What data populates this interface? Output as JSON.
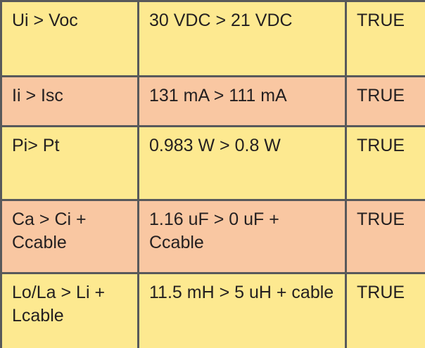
{
  "table": {
    "rows": [
      [
        "Ui > Voc",
        "30 VDC > 21 VDC",
        "TRUE"
      ],
      [
        "Ii > Isc",
        "131 mA > 111 mA",
        "TRUE"
      ],
      [
        "Pi> Pt",
        "0.983 W > 0.8 W",
        "TRUE"
      ],
      [
        "Ca > Ci + Ccable",
        "1.16 uF > 0 uF + Ccable",
        "TRUE"
      ],
      [
        "Lo/La > Li + Lcable",
        "11.5 mH > 5 uH + cable",
        "TRUE"
      ]
    ]
  }
}
